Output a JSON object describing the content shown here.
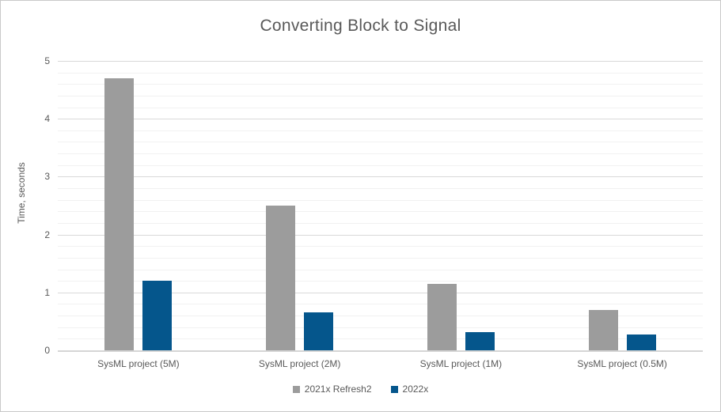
{
  "chart_data": {
    "type": "bar",
    "title": "Converting Block to Signal",
    "xlabel": "",
    "ylabel": "Time, seconds",
    "categories": [
      "SysML project (5M)",
      "SysML project (2M)",
      "SysML project (1M)",
      "SysML project (0.5M)"
    ],
    "series": [
      {
        "name": "2021x Refresh2",
        "color": "#9c9c9c",
        "values": [
          4.7,
          2.5,
          1.15,
          0.7
        ]
      },
      {
        "name": "2022x",
        "color": "#05568c",
        "values": [
          1.2,
          0.65,
          0.32,
          0.28
        ]
      }
    ],
    "ylim": [
      0,
      5
    ],
    "y_major_step": 1,
    "y_minor_step": 0.2,
    "y_tick_labels": [
      "0",
      "1",
      "2",
      "3",
      "4",
      "5"
    ],
    "grid": "horizontal major and minor gridlines on",
    "legend_position": "bottom-center",
    "colors": {
      "title_text": "#595959",
      "axis_text": "#595959",
      "major_gridline": "#d9d9d9",
      "minor_gridline": "#f1f1f1",
      "axis_baseline": "#d5d5d5",
      "canvas_border": "#c9c9c9",
      "background": "#ffffff"
    }
  }
}
